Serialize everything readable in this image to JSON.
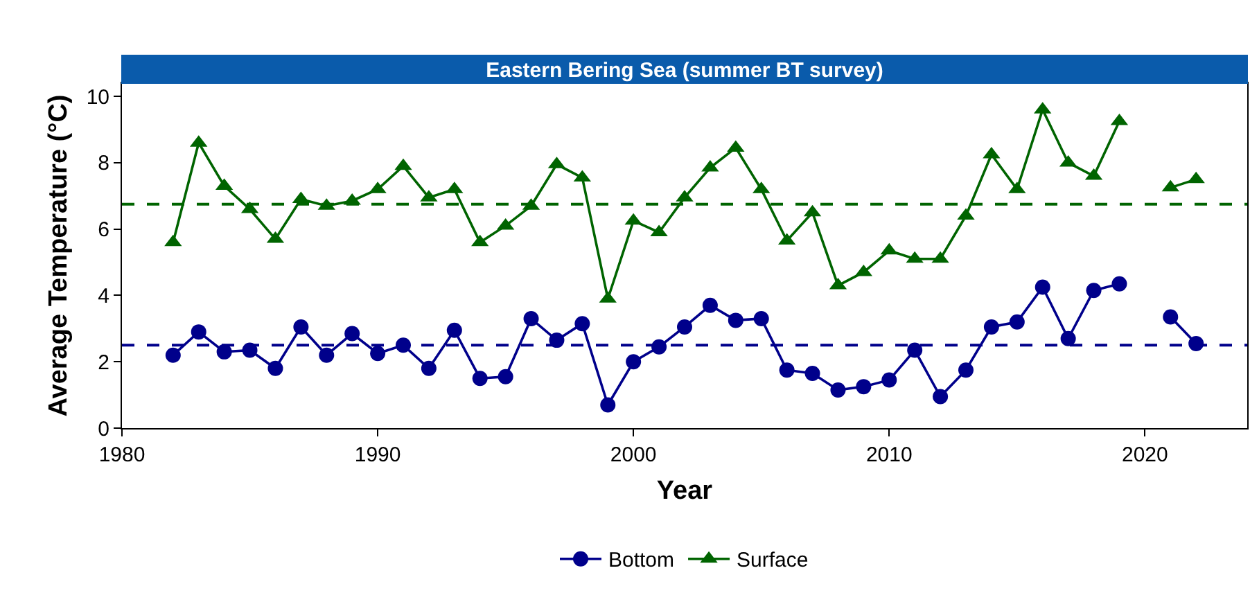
{
  "chart_data": {
    "type": "line",
    "title": "Eastern Bering Sea (summer BT survey)",
    "xlabel": "Year",
    "ylabel": "Average Temperature (°C)",
    "x": [
      1982,
      1983,
      1984,
      1985,
      1986,
      1987,
      1988,
      1989,
      1990,
      1991,
      1992,
      1993,
      1994,
      1995,
      1996,
      1997,
      1998,
      1999,
      2000,
      2001,
      2002,
      2003,
      2004,
      2005,
      2006,
      2007,
      2008,
      2009,
      2010,
      2011,
      2012,
      2013,
      2014,
      2015,
      2016,
      2017,
      2018,
      2019,
      2020,
      2021,
      2022
    ],
    "series": [
      {
        "name": "Bottom",
        "color": "#00008b",
        "marker": "circle",
        "values": [
          2.2,
          2.9,
          2.3,
          2.35,
          1.8,
          3.05,
          2.2,
          2.85,
          2.25,
          2.5,
          1.8,
          2.95,
          1.5,
          1.55,
          3.3,
          2.65,
          3.15,
          0.7,
          2.0,
          2.45,
          3.05,
          3.7,
          3.25,
          3.3,
          1.75,
          1.65,
          1.15,
          1.25,
          1.45,
          2.35,
          0.95,
          1.75,
          3.05,
          3.2,
          4.25,
          2.7,
          4.15,
          4.35,
          null,
          3.35,
          2.55
        ]
      },
      {
        "name": "Surface",
        "color": "#006400",
        "marker": "triangle",
        "values": [
          5.6,
          8.6,
          7.3,
          6.6,
          5.7,
          6.9,
          6.7,
          6.85,
          7.2,
          7.9,
          6.95,
          7.2,
          5.6,
          6.1,
          6.7,
          7.95,
          7.55,
          3.9,
          6.25,
          5.9,
          6.95,
          7.85,
          8.45,
          7.2,
          5.65,
          6.5,
          4.3,
          4.7,
          5.35,
          5.1,
          5.1,
          6.4,
          8.25,
          7.2,
          9.6,
          8.0,
          7.6,
          9.25,
          null,
          7.25,
          7.5
        ]
      }
    ],
    "ref_lines": [
      {
        "axis": "y",
        "value": 2.5,
        "color": "#00008b",
        "line_style": "dashed"
      },
      {
        "axis": "y",
        "value": 6.75,
        "color": "#006400",
        "line_style": "dashed"
      }
    ],
    "xlim": [
      1980,
      2024
    ],
    "xticks": [
      1980,
      1990,
      2000,
      2010,
      2020
    ],
    "ylim": [
      0,
      10.4
    ],
    "yticks": [
      0,
      2,
      4,
      6,
      8,
      10
    ],
    "grid": false,
    "legend": "bottom",
    "line_style": "solid"
  }
}
